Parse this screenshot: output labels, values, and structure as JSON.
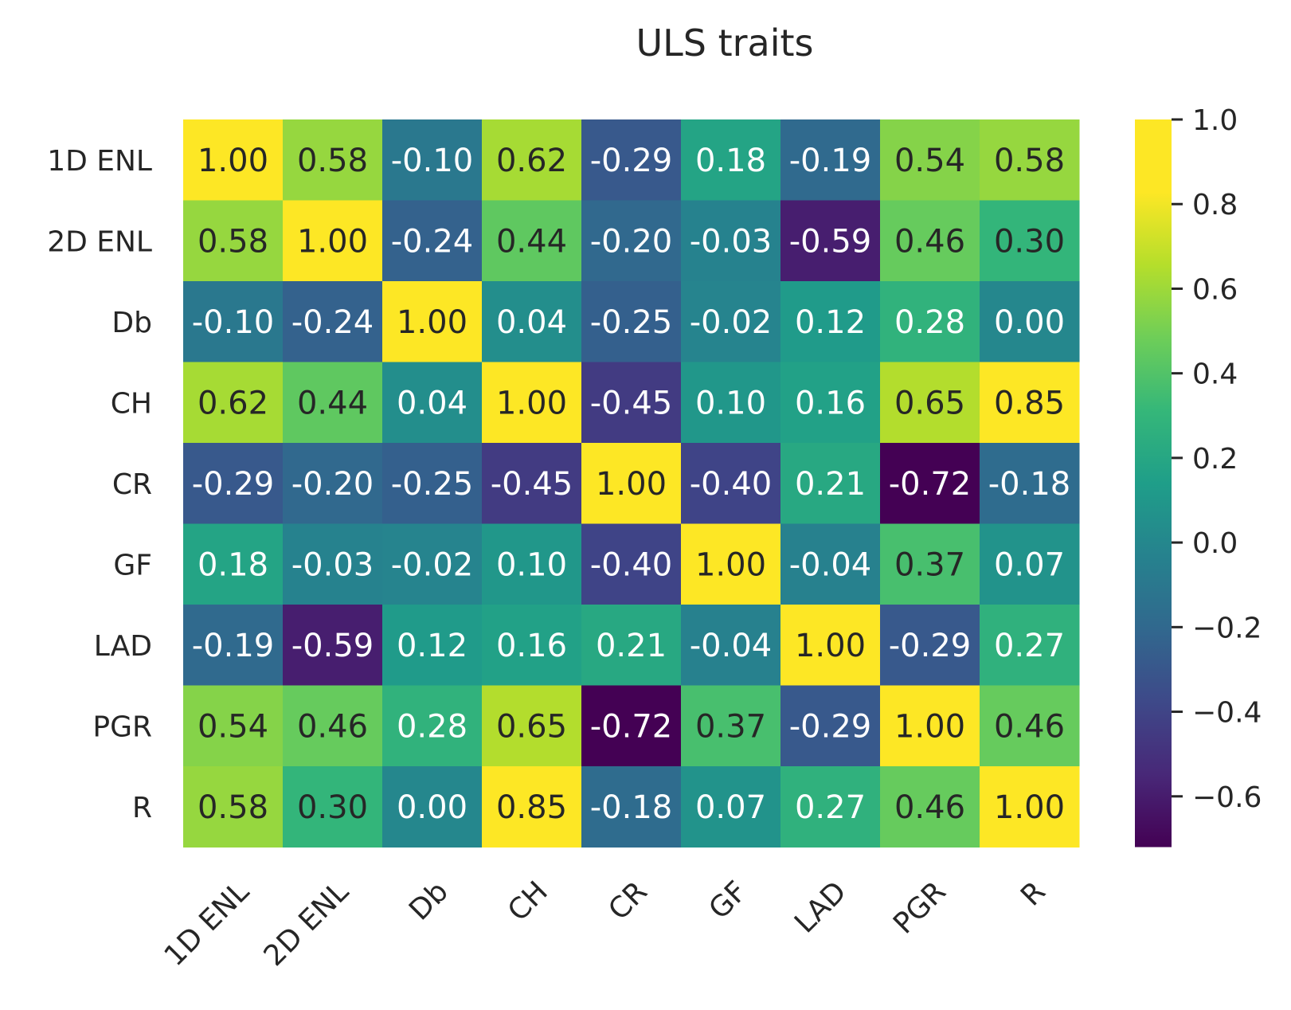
{
  "chart_data": {
    "type": "heatmap",
    "title": "ULS traits",
    "xlabel": "",
    "ylabel": "",
    "x_labels": [
      "1D ENL",
      "2D ENL",
      "Db",
      "CH",
      "CR",
      "GF",
      "LAD",
      "PGR",
      "R"
    ],
    "y_labels": [
      "1D ENL",
      "2D ENL",
      "Db",
      "CH",
      "CR",
      "GF",
      "LAD",
      "PGR",
      "R"
    ],
    "values": [
      [
        1.0,
        0.58,
        -0.1,
        0.62,
        -0.29,
        0.18,
        -0.19,
        0.54,
        0.58
      ],
      [
        0.58,
        1.0,
        -0.24,
        0.44,
        -0.2,
        -0.03,
        -0.59,
        0.46,
        0.3
      ],
      [
        -0.1,
        -0.24,
        1.0,
        0.04,
        -0.25,
        -0.02,
        0.12,
        0.28,
        0.0
      ],
      [
        0.62,
        0.44,
        0.04,
        1.0,
        -0.45,
        0.1,
        0.16,
        0.65,
        0.85
      ],
      [
        -0.29,
        -0.2,
        -0.25,
        -0.45,
        1.0,
        -0.4,
        0.21,
        -0.72,
        -0.18
      ],
      [
        0.18,
        -0.03,
        -0.02,
        0.1,
        -0.4,
        1.0,
        -0.04,
        0.37,
        0.07
      ],
      [
        -0.19,
        -0.59,
        0.12,
        0.16,
        0.21,
        -0.04,
        1.0,
        -0.29,
        0.27
      ],
      [
        0.54,
        0.46,
        0.28,
        0.65,
        -0.72,
        0.37,
        -0.29,
        1.0,
        0.46
      ],
      [
        0.58,
        0.3,
        0.0,
        0.85,
        -0.18,
        0.07,
        0.27,
        0.46,
        1.0
      ]
    ],
    "annotation_format": "0.00",
    "colormap": "viridis",
    "vmin": -0.72,
    "vmax": 1.0,
    "colorbar": {
      "ticks": [
        1.0,
        0.8,
        0.6,
        0.4,
        0.2,
        0.0,
        -0.2,
        -0.4,
        -0.6
      ],
      "tick_labels": [
        "1.0",
        "0.8",
        "0.6",
        "0.4",
        "0.2",
        "0.0",
        "−0.2",
        "−0.4",
        "−0.6"
      ]
    },
    "colors": {
      "text_dark": "#262626",
      "text_light": "#ffffff",
      "tick_mark": "#262626"
    }
  }
}
